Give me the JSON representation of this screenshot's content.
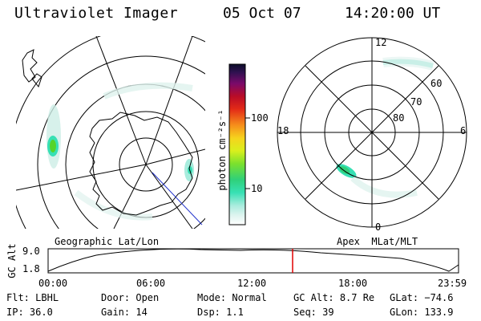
{
  "header": {
    "title": "Ultraviolet Imager",
    "date": "05 Oct 07",
    "time": "14:20:00 UT"
  },
  "geo_map": {
    "label": "Geographic Lat/Lon"
  },
  "colorbar": {
    "unit": "photon cm⁻²s⁻¹",
    "ticks": [
      "100",
      "10"
    ]
  },
  "apex_map": {
    "label": "Apex  MLat/MLT",
    "mlt_labels": {
      "top": "12",
      "left": "18",
      "right": "6",
      "bottom": "0"
    },
    "lat_labels": [
      "60",
      "70",
      "80"
    ]
  },
  "altitude_plot": {
    "axis_label": "GC Alt",
    "y_ticks": [
      "9.0",
      "1.8"
    ],
    "x_ticks": [
      "00:00",
      "06:00",
      "12:00",
      "18:00",
      "23:59"
    ]
  },
  "info": {
    "row1": [
      {
        "label": "Flt:",
        "value": "LBHL"
      },
      {
        "label": "Door:",
        "value": "Open"
      },
      {
        "label": "Mode:",
        "value": "Normal"
      },
      {
        "label": "GC Alt:",
        "value": "8.7 Re"
      },
      {
        "label": "GLat:",
        "value": "−74.6"
      }
    ],
    "row2": [
      {
        "label": "IP:",
        "value": "36.0"
      },
      {
        "label": "Gain:",
        "value": "14"
      },
      {
        "label": "Dsp:",
        "value": "1.1"
      },
      {
        "label": "Seq:",
        "value": "39"
      },
      {
        "label": "GLon:",
        "value": "133.9"
      }
    ]
  },
  "colors": {
    "marker": "#e00000",
    "aurora_bright": "#22cc22",
    "aurora_faint": "#bfeee6"
  }
}
